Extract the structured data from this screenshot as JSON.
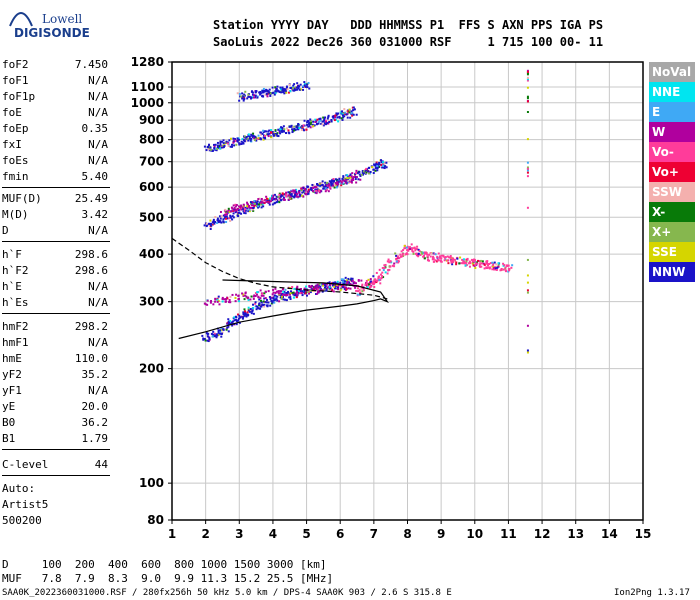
{
  "logo": {
    "line1": "Lowell",
    "line2": "DIGISONDE"
  },
  "header": {
    "line1": "Station YYYY DAY   DDD HHMMSS P1  FFS S AXN PPS IGA PS",
    "line2": "SaoLuis 2022 Dec26 360 031000 RSF     1 715 100 00- 11"
  },
  "params": {
    "group1": [
      {
        "key": "foF2",
        "value": "7.450"
      },
      {
        "key": "foF1",
        "value": "N/A"
      },
      {
        "key": "foF1p",
        "value": "N/A"
      },
      {
        "key": "foE",
        "value": "N/A"
      },
      {
        "key": "foEp",
        "value": "0.35"
      },
      {
        "key": "fxI",
        "value": "N/A"
      },
      {
        "key": "foEs",
        "value": "N/A"
      },
      {
        "key": "fmin",
        "value": "5.40"
      }
    ],
    "group2": [
      {
        "key": "MUF(D)",
        "value": "25.49"
      },
      {
        "key": "M(D)",
        "value": "3.42"
      },
      {
        "key": "D",
        "value": "N/A"
      }
    ],
    "group3": [
      {
        "key": "h`F",
        "value": "298.6"
      },
      {
        "key": "h`F2",
        "value": "298.6"
      },
      {
        "key": "h`E",
        "value": "N/A"
      },
      {
        "key": "h`Es",
        "value": "N/A"
      }
    ],
    "group4": [
      {
        "key": "hmF2",
        "value": "298.2"
      },
      {
        "key": "hmF1",
        "value": "N/A"
      },
      {
        "key": "hmE",
        "value": "110.0"
      },
      {
        "key": "yF2",
        "value": "35.2"
      },
      {
        "key": "yF1",
        "value": "N/A"
      },
      {
        "key": "yE",
        "value": "20.0"
      },
      {
        "key": "B0",
        "value": "36.2"
      },
      {
        "key": "B1",
        "value": "1.79"
      }
    ],
    "group5": [
      {
        "key": "C-level",
        "value": "44"
      }
    ],
    "auto_lines": [
      "Auto:",
      "Artist5",
      "500200"
    ]
  },
  "legend": [
    {
      "label": "NoVal",
      "color": "#a8a8a8"
    },
    {
      "label": "NNE",
      "color": "#00e5f0"
    },
    {
      "label": "E",
      "color": "#3fa9f5"
    },
    {
      "label": "W",
      "color": "#b0009e"
    },
    {
      "label": "Vo-",
      "color": "#ff3c9a"
    },
    {
      "label": "Vo+",
      "color": "#ee0033"
    },
    {
      "label": "SSW",
      "color": "#f4b0ae"
    },
    {
      "label": "X-",
      "color": "#087a08"
    },
    {
      "label": "X+",
      "color": "#86b74e"
    },
    {
      "label": "SSE",
      "color": "#d5d500"
    },
    {
      "label": "NNW",
      "color": "#1a13c8"
    }
  ],
  "footer": {
    "line1": "D     100  200  400  600  800 1000 1500 3000 [km]",
    "line2": "MUF   7.8  7.9  8.3  9.0  9.9 11.3 15.2 25.5 [MHz]",
    "bottom_left": "SAA0K_2022360031000.RSF / 280fx256h 50 kHz 5.0 km / DPS-4 SAA0K 903 / 2.6 S 315.8 E",
    "bottom_right": "Ion2Png 1.3.17"
  },
  "chart_data": {
    "type": "scatter",
    "title": "",
    "xlabel": "",
    "ylabel": "",
    "xlim": [
      1,
      15
    ],
    "ylim": [
      80,
      1280
    ],
    "y_scale": "log",
    "grid": true,
    "x_ticks": [
      "1",
      "2",
      "3",
      "4",
      "5",
      "6",
      "7",
      "8",
      "9",
      "10",
      "11",
      "12",
      "13",
      "14",
      "15"
    ],
    "y_ticks": [
      "80",
      "100",
      "200",
      "300",
      "400",
      "500",
      "600",
      "700",
      "800",
      "900",
      "1000",
      "1100",
      "1280"
    ],
    "y_tick_values": [
      80,
      100,
      200,
      300,
      400,
      500,
      600,
      700,
      800,
      900,
      1000,
      1100,
      1280
    ],
    "series": [
      {
        "name": "NNW",
        "color": "#1a13c8",
        "segments": [
          {
            "x": [
              1.95,
              2.5,
              3.0,
              3.5,
              4.0,
              4.5,
              5.0,
              5.5,
              6.0,
              6.3
            ],
            "y": [
              240,
              255,
              275,
              295,
              305,
              315,
              320,
              330,
              335,
              345
            ]
          },
          {
            "x": [
              2.0,
              2.5,
              3.0,
              3.5,
              4.0,
              4.5,
              5.0,
              5.5,
              6.0,
              6.5,
              7.0,
              7.3
            ],
            "y": [
              480,
              500,
              525,
              545,
              560,
              575,
              590,
              610,
              625,
              650,
              680,
              700
            ]
          },
          {
            "x": [
              2.0,
              2.5,
              3.0,
              3.5,
              4.0,
              4.5,
              5.0,
              5.5,
              6.0,
              6.4
            ],
            "y": [
              760,
              780,
              800,
              820,
              840,
              860,
              880,
              900,
              930,
              960
            ]
          },
          {
            "x": [
              3.0,
              3.5,
              4.0,
              4.5,
              5.0
            ],
            "y": [
              1040,
              1060,
              1080,
              1100,
              1120
            ]
          }
        ]
      },
      {
        "name": "W",
        "color": "#b0009e",
        "segments": [
          {
            "x": [
              2.0,
              3.0,
              4.0,
              5.0,
              6.0,
              7.0
            ],
            "y": [
              300,
              310,
              318,
              325,
              330,
              340
            ]
          },
          {
            "x": [
              2.5,
              3.5,
              4.5,
              5.5,
              6.5
            ],
            "y": [
              520,
              550,
              575,
              600,
              640
            ]
          }
        ]
      },
      {
        "name": "Vo-",
        "color": "#ff3c9a",
        "segments": [
          {
            "x": [
              6.5,
              7.0,
              7.5,
              8.0,
              8.5,
              9.0,
              9.5,
              10.0,
              10.5,
              11.0
            ],
            "y": [
              320,
              340,
              380,
              420,
              400,
              390,
              385,
              380,
              375,
              370
            ]
          }
        ]
      }
    ],
    "curves": [
      {
        "name": "profile",
        "color": "#000000",
        "style": "solid",
        "x": [
          1.2,
          2.0,
          3.0,
          4.0,
          5.0,
          6.0,
          6.5,
          7.0,
          7.2,
          7.4,
          7.2,
          6.5,
          5.5,
          4.5,
          3.5,
          2.5
        ],
        "y": [
          240,
          250,
          265,
          275,
          285,
          292,
          296,
          302,
          305,
          300,
          318,
          330,
          336,
          338,
          340,
          342
        ]
      },
      {
        "name": "virtual",
        "color": "#000000",
        "style": "dashed",
        "x": [
          1.0,
          1.5,
          2.0,
          2.5,
          3.0,
          3.5,
          4.0,
          5.0,
          6.0,
          7.0,
          7.4
        ],
        "y": [
          440,
          410,
          380,
          360,
          345,
          335,
          328,
          322,
          318,
          312,
          305
        ]
      }
    ],
    "noval_column": {
      "x": 11.55,
      "y": [
        200,
        1280
      ]
    }
  }
}
